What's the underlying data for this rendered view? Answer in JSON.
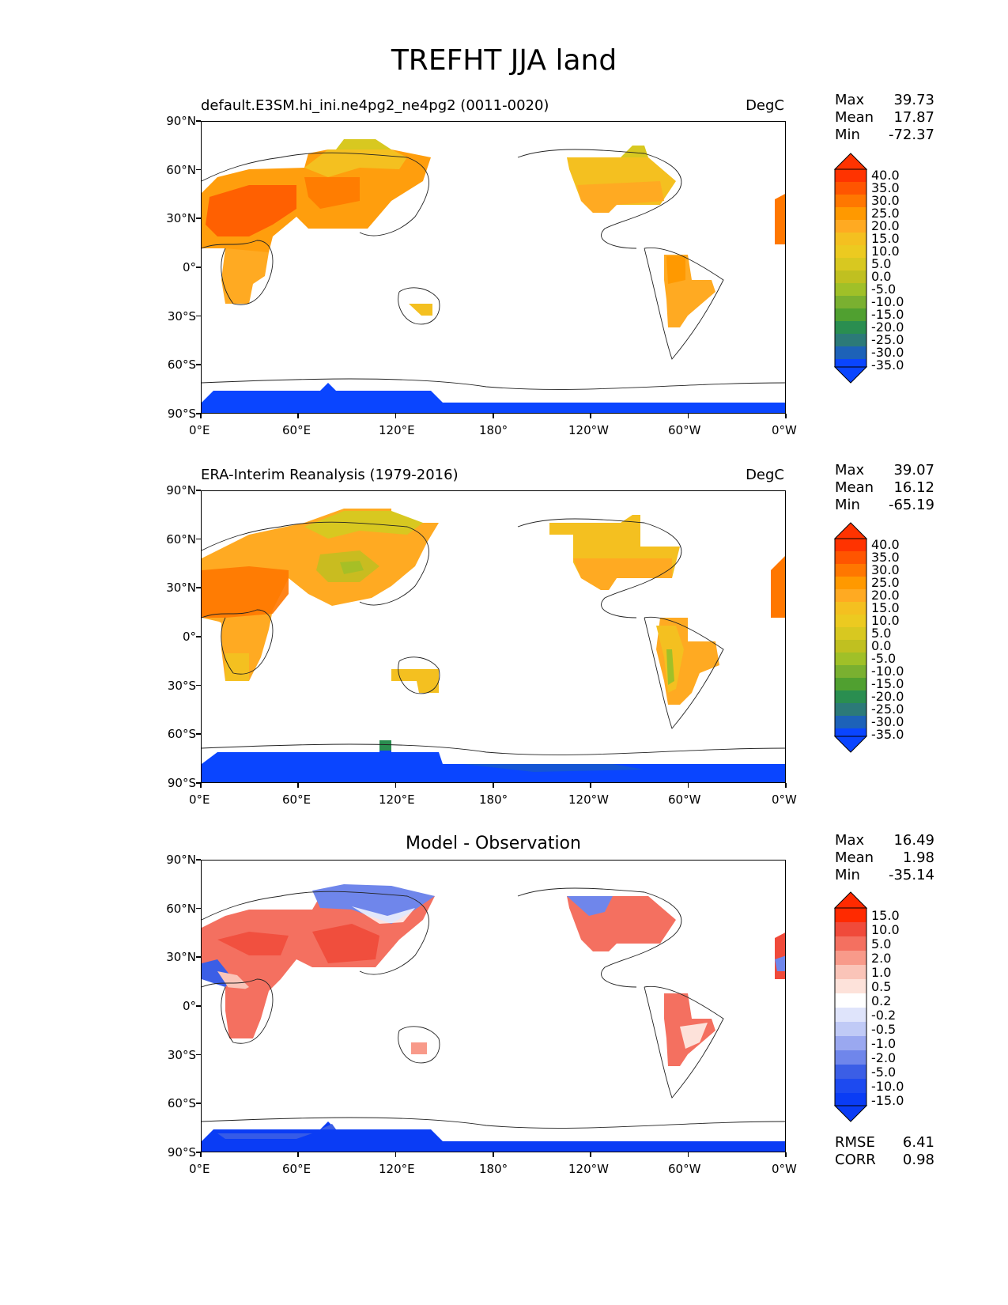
{
  "figure_title": "TREFHT JJA land",
  "axes": {
    "x_ticks": [
      "0°E",
      "60°E",
      "120°E",
      "180°",
      "120°W",
      "60°W",
      "0°W"
    ],
    "y_ticks": [
      "90°N",
      "60°N",
      "30°N",
      "0°",
      "30°S",
      "60°S",
      "90°S"
    ]
  },
  "panels": [
    {
      "title": "default.E3SM.hi_ini.ne4pg2_ne4pg2 (0011-0020)",
      "units": "DegC",
      "stats": [
        {
          "label": "Max",
          "value": "39.73"
        },
        {
          "label": "Mean",
          "value": "17.87"
        },
        {
          "label": "Min",
          "value": "-72.37"
        }
      ],
      "colorbar": [
        "40.0",
        "35.0",
        "30.0",
        "25.0",
        "20.0",
        "15.0",
        "10.0",
        "5.0",
        "0.0",
        "-5.0",
        "-10.0",
        "-15.0",
        "-20.0",
        "-25.0",
        "-30.0",
        "-35.0"
      ]
    },
    {
      "title": "ERA-Interim Reanalysis (1979-2016)",
      "units": "DegC",
      "stats": [
        {
          "label": "Max",
          "value": "39.07"
        },
        {
          "label": "Mean",
          "value": "16.12"
        },
        {
          "label": "Min",
          "value": "-65.19"
        }
      ],
      "colorbar": [
        "40.0",
        "35.0",
        "30.0",
        "25.0",
        "20.0",
        "15.0",
        "10.0",
        "5.0",
        "0.0",
        "-5.0",
        "-10.0",
        "-15.0",
        "-20.0",
        "-25.0",
        "-30.0",
        "-35.0"
      ]
    },
    {
      "title": "Model - Observation",
      "units": "",
      "stats": [
        {
          "label": "Max",
          "value": "16.49"
        },
        {
          "label": "Mean",
          "value": "1.98"
        },
        {
          "label": "Min",
          "value": "-35.14"
        }
      ],
      "colorbar": [
        "15.0",
        "10.0",
        "5.0",
        "2.0",
        "1.0",
        "0.5",
        "0.2",
        "-0.2",
        "-0.5",
        "-1.0",
        "-2.0",
        "-5.0",
        "-10.0",
        "-15.0"
      ],
      "metrics": [
        {
          "label": "RMSE",
          "value": "6.41"
        },
        {
          "label": "CORR",
          "value": "0.98"
        }
      ]
    }
  ],
  "colors": {
    "abs_scale": [
      "#ff3300",
      "#ff5500",
      "#ff7700",
      "#ff9900",
      "#ffaa22",
      "#f4c020",
      "#ecca20",
      "#d8c820",
      "#c0c020",
      "#a0c028",
      "#7ab030",
      "#50a030",
      "#2a8e50",
      "#2c7a78",
      "#1d62b8",
      "#0a45ff"
    ],
    "diff_scale": [
      "#ff2a00",
      "#f04a3a",
      "#f47060",
      "#f89a8a",
      "#fac4b8",
      "#fde2da",
      "#ffffff",
      "#ffffff",
      "#dfe4fb",
      "#c0caf6",
      "#9aa8f0",
      "#6f86eb",
      "#3b5ee6",
      "#0a3cf5"
    ]
  },
  "chart_data": [
    {
      "type": "heatmap",
      "title": "default.E3SM.hi_ini.ne4pg2_ne4pg2 (0011-0020)",
      "units": "DegC",
      "xlim": [
        0,
        360
      ],
      "ylim": [
        -90,
        90
      ],
      "x_tick_values": [
        0,
        60,
        120,
        180,
        240,
        300,
        360
      ],
      "y_tick_values": [
        90,
        60,
        30,
        0,
        -30,
        -60,
        -90
      ],
      "colorbar_levels": [
        40,
        35,
        30,
        25,
        20,
        15,
        10,
        5,
        0,
        -5,
        -10,
        -15,
        -20,
        -25,
        -30,
        -35
      ],
      "max": 39.73,
      "mean": 17.87,
      "min": -72.37
    },
    {
      "type": "heatmap",
      "title": "ERA-Interim Reanalysis (1979-2016)",
      "units": "DegC",
      "xlim": [
        0,
        360
      ],
      "ylim": [
        -90,
        90
      ],
      "x_tick_values": [
        0,
        60,
        120,
        180,
        240,
        300,
        360
      ],
      "y_tick_values": [
        90,
        60,
        30,
        0,
        -30,
        -60,
        -90
      ],
      "colorbar_levels": [
        40,
        35,
        30,
        25,
        20,
        15,
        10,
        5,
        0,
        -5,
        -10,
        -15,
        -20,
        -25,
        -30,
        -35
      ],
      "max": 39.07,
      "mean": 16.12,
      "min": -65.19
    },
    {
      "type": "heatmap",
      "title": "Model - Observation",
      "xlim": [
        0,
        360
      ],
      "ylim": [
        -90,
        90
      ],
      "x_tick_values": [
        0,
        60,
        120,
        180,
        240,
        300,
        360
      ],
      "y_tick_values": [
        90,
        60,
        30,
        0,
        -30,
        -60,
        -90
      ],
      "colorbar_levels": [
        15,
        10,
        5,
        2,
        1,
        0.5,
        0.2,
        -0.2,
        -0.5,
        -1,
        -2,
        -5,
        -10,
        -15
      ],
      "max": 16.49,
      "mean": 1.98,
      "min": -35.14,
      "rmse": 6.41,
      "corr": 0.98
    }
  ]
}
